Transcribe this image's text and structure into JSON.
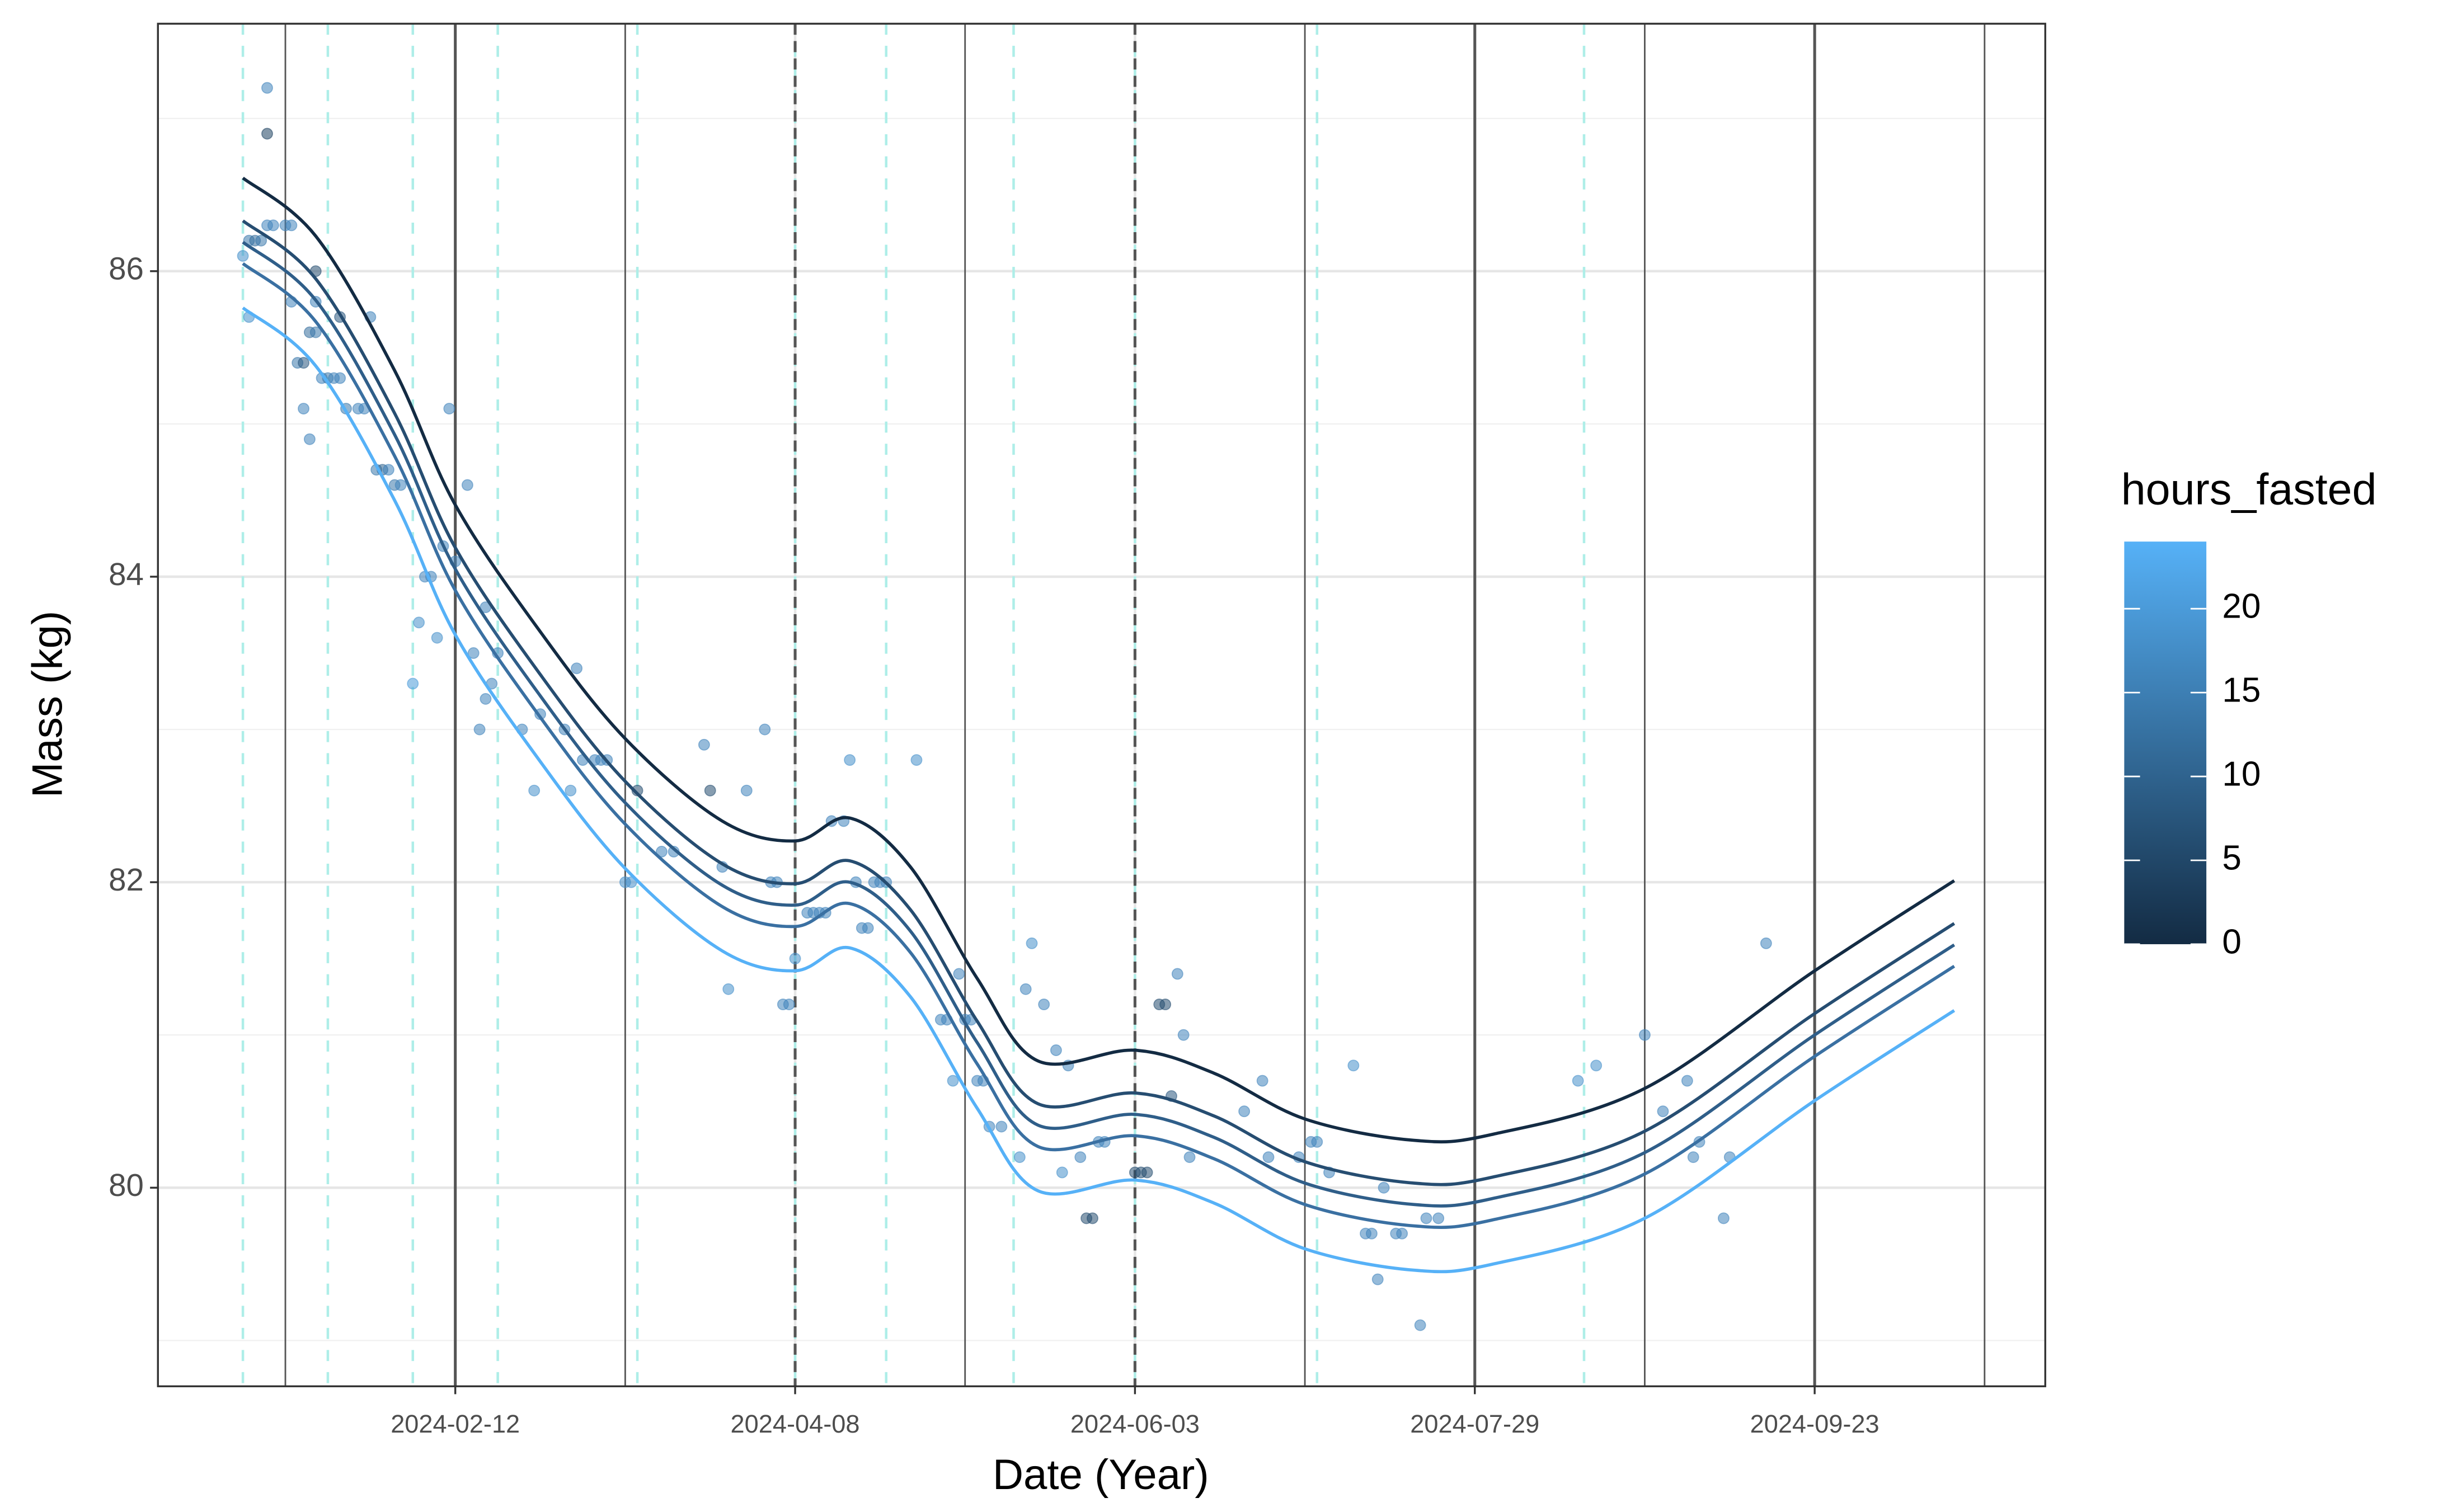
{
  "chart_data": {
    "type": "scatter",
    "x_label": "Date (Year)",
    "y_label": "Mass (kg)",
    "legend_title": "hours_fasted",
    "xlim": [
      "2023-12-25",
      "2024-10-31"
    ],
    "xticks": [
      "2024-02-12",
      "2024-04-08",
      "2024-06-03",
      "2024-07-29",
      "2024-09-23"
    ],
    "ylim": [
      78.7,
      87.62
    ],
    "yticks": [
      80,
      82,
      84,
      86
    ],
    "yminor": [
      79,
      81,
      83,
      85,
      87
    ],
    "grid": true,
    "colorscale": [
      "#132B43",
      "#56B1F7"
    ],
    "colorlim": [
      0,
      24
    ],
    "colorticks": [
      0,
      5,
      10,
      15,
      20
    ],
    "vlines": [
      "2024-01-15",
      "2024-02-12",
      "2024-03-11",
      "2024-04-08",
      "2024-05-06",
      "2024-06-03",
      "2024-07-01",
      "2024-07-29",
      "2024-08-26",
      "2024-09-23",
      "2024-10-21"
    ],
    "vline_color": "#555555",
    "dashed_vlines": [
      "2024-01-08",
      "2024-01-22",
      "2024-02-05",
      "2024-02-19",
      "2024-03-13",
      "2024-04-08",
      "2024-04-23",
      "2024-05-14",
      "2024-06-03",
      "2024-07-03",
      "2024-08-16"
    ],
    "dashed_vline_color": "#aeeee8",
    "points": {
      "x": [
        "2024-01-08",
        "2024-01-09",
        "2024-01-09",
        "2024-01-10",
        "2024-01-11",
        "2024-01-12",
        "2024-01-12",
        "2024-01-12",
        "2024-01-13",
        "2024-01-15",
        "2024-01-16",
        "2024-01-16",
        "2024-01-17",
        "2024-01-18",
        "2024-01-18",
        "2024-01-19",
        "2024-01-19",
        "2024-01-20",
        "2024-01-20",
        "2024-01-20",
        "2024-01-21",
        "2024-01-22",
        "2024-01-23",
        "2024-01-24",
        "2024-01-24",
        "2024-01-25",
        "2024-01-27",
        "2024-01-28",
        "2024-01-29",
        "2024-01-30",
        "2024-01-31",
        "2024-02-01",
        "2024-02-02",
        "2024-02-03",
        "2024-02-05",
        "2024-02-06",
        "2024-02-07",
        "2024-02-08",
        "2024-02-09",
        "2024-02-10",
        "2024-02-11",
        "2024-02-12",
        "2024-02-14",
        "2024-02-15",
        "2024-02-16",
        "2024-02-17",
        "2024-02-17",
        "2024-02-18",
        "2024-02-19",
        "2024-02-23",
        "2024-02-25",
        "2024-02-26",
        "2024-03-01",
        "2024-03-02",
        "2024-03-03",
        "2024-03-04",
        "2024-03-06",
        "2024-03-07",
        "2024-03-08",
        "2024-03-11",
        "2024-03-12",
        "2024-03-13",
        "2024-03-17",
        "2024-03-19",
        "2024-03-24",
        "2024-03-25",
        "2024-03-27",
        "2024-03-28",
        "2024-03-31",
        "2024-04-03",
        "2024-04-04",
        "2024-04-05",
        "2024-04-06",
        "2024-04-07",
        "2024-04-08",
        "2024-04-10",
        "2024-04-11",
        "2024-04-12",
        "2024-04-13",
        "2024-04-14",
        "2024-04-16",
        "2024-04-17",
        "2024-04-18",
        "2024-04-19",
        "2024-04-20",
        "2024-04-21",
        "2024-04-22",
        "2024-04-23",
        "2024-04-28",
        "2024-05-02",
        "2024-05-03",
        "2024-05-04",
        "2024-05-05",
        "2024-05-06",
        "2024-05-07",
        "2024-05-08",
        "2024-05-09",
        "2024-05-10",
        "2024-05-12",
        "2024-05-15",
        "2024-05-16",
        "2024-05-17",
        "2024-05-19",
        "2024-05-21",
        "2024-05-22",
        "2024-05-23",
        "2024-05-25",
        "2024-05-26",
        "2024-05-27",
        "2024-05-28",
        "2024-05-29",
        "2024-06-03",
        "2024-06-04",
        "2024-06-05",
        "2024-06-07",
        "2024-06-08",
        "2024-06-09",
        "2024-06-10",
        "2024-06-11",
        "2024-06-12",
        "2024-06-21",
        "2024-06-24",
        "2024-06-25",
        "2024-06-30",
        "2024-07-02",
        "2024-07-03",
        "2024-07-05",
        "2024-07-09",
        "2024-07-11",
        "2024-07-12",
        "2024-07-13",
        "2024-07-14",
        "2024-07-16",
        "2024-07-17",
        "2024-07-20",
        "2024-07-21",
        "2024-07-23",
        "2024-08-15",
        "2024-08-18",
        "2024-08-26",
        "2024-08-29",
        "2024-09-02",
        "2024-09-03",
        "2024-09-04",
        "2024-09-08",
        "2024-09-09",
        "2024-09-15"
      ],
      "y": [
        86.1,
        85.7,
        86.2,
        86.2,
        86.2,
        87.2,
        86.9,
        86.3,
        86.3,
        86.3,
        86.3,
        85.8,
        85.4,
        85.4,
        85.1,
        85.6,
        84.9,
        85.6,
        85.8,
        86.0,
        85.3,
        85.3,
        85.3,
        85.7,
        85.3,
        85.1,
        85.1,
        85.1,
        85.7,
        84.7,
        84.7,
        84.7,
        84.6,
        84.6,
        83.3,
        83.7,
        84.0,
        84.0,
        83.6,
        84.2,
        85.1,
        84.1,
        84.6,
        83.5,
        83.0,
        83.8,
        83.2,
        83.3,
        83.5,
        83.0,
        82.6,
        83.1,
        83.0,
        82.6,
        83.4,
        82.8,
        82.8,
        82.8,
        82.8,
        82.0,
        82.0,
        82.6,
        82.2,
        82.2,
        82.9,
        82.6,
        82.1,
        81.3,
        82.6,
        83.0,
        82.0,
        82.0,
        81.2,
        81.2,
        81.5,
        81.8,
        81.8,
        81.8,
        81.8,
        82.4,
        82.4,
        82.8,
        82.0,
        81.7,
        81.7,
        82.0,
        82.0,
        82.0,
        82.8,
        81.1,
        81.1,
        80.7,
        81.4,
        81.1,
        81.1,
        80.7,
        80.7,
        80.4,
        80.4,
        80.2,
        81.3,
        81.6,
        81.2,
        80.9,
        80.1,
        80.8,
        80.2,
        79.8,
        79.8,
        80.3,
        80.3,
        80.1,
        80.1,
        80.1,
        81.2,
        81.2,
        80.6,
        81.4,
        81.0,
        80.2,
        80.5,
        80.7,
        80.2,
        80.2,
        80.3,
        80.3,
        80.1,
        80.8,
        79.7,
        79.7,
        79.4,
        80.0,
        79.7,
        79.7,
        79.1,
        79.8,
        79.8,
        80.7,
        80.8,
        81.0,
        80.5,
        80.7,
        80.2,
        80.3,
        79.8,
        80.2,
        81.6
      ],
      "hours": [
        18,
        18,
        14,
        12,
        14,
        16,
        4,
        16,
        16,
        16,
        16,
        16,
        14,
        8,
        16,
        12,
        16,
        14,
        16,
        6,
        16,
        14,
        16,
        8,
        16,
        14,
        16,
        16,
        16,
        14,
        10,
        16,
        14,
        16,
        20,
        18,
        16,
        16,
        18,
        16,
        16,
        16,
        16,
        16,
        16,
        16,
        16,
        16,
        16,
        16,
        18,
        16,
        16,
        18,
        16,
        16,
        16,
        16,
        16,
        18,
        18,
        6,
        16,
        16,
        16,
        6,
        16,
        18,
        16,
        16,
        16,
        16,
        16,
        16,
        18,
        16,
        16,
        16,
        16,
        16,
        16,
        18,
        16,
        16,
        16,
        16,
        16,
        16,
        18,
        16,
        16,
        18,
        16,
        16,
        16,
        16,
        16,
        16,
        16,
        18,
        16,
        18,
        16,
        16,
        18,
        16,
        16,
        6,
        6,
        16,
        16,
        6,
        6,
        6,
        6,
        6,
        8,
        16,
        16,
        16,
        16,
        16,
        16,
        16,
        16,
        16,
        16,
        18,
        16,
        16,
        16,
        16,
        16,
        16,
        16,
        16,
        16,
        18,
        18,
        16,
        16,
        16,
        16,
        16,
        16,
        16,
        16
      ],
      "opacity": 0.55
    },
    "lines_x": [
      "2024-01-08",
      "2024-01-20",
      "2024-02-02",
      "2024-02-12",
      "2024-02-26",
      "2024-03-11",
      "2024-03-27",
      "2024-04-08",
      "2024-04-17",
      "2024-04-27",
      "2024-05-08",
      "2024-05-18",
      "2024-06-03",
      "2024-06-16",
      "2024-07-01",
      "2024-07-19",
      "2024-08-01",
      "2024-08-26",
      "2024-09-23",
      "2024-10-16"
    ],
    "series": [
      {
        "color": "#132B43",
        "values": [
          86.61,
          86.23,
          85.35,
          84.47,
          83.64,
          82.94,
          82.4,
          82.27,
          82.42,
          82.1,
          81.37,
          80.83,
          80.9,
          80.75,
          80.45,
          80.31,
          80.35,
          80.65,
          81.42,
          82.01
        ]
      },
      {
        "color": "#264D71",
        "values": [
          86.33,
          85.95,
          85.07,
          84.19,
          83.36,
          82.66,
          82.12,
          81.99,
          82.14,
          81.82,
          81.09,
          80.55,
          80.62,
          80.47,
          80.17,
          80.03,
          80.07,
          80.37,
          81.14,
          81.73
        ]
      },
      {
        "color": "#2F5E89",
        "values": [
          86.19,
          85.81,
          84.93,
          84.05,
          83.22,
          82.52,
          81.98,
          81.85,
          82.0,
          81.68,
          80.95,
          80.41,
          80.48,
          80.33,
          80.03,
          79.89,
          79.93,
          80.23,
          81.0,
          81.59
        ]
      },
      {
        "color": "#3A70A2",
        "values": [
          86.05,
          85.67,
          84.79,
          83.91,
          83.08,
          82.38,
          81.84,
          81.71,
          81.86,
          81.54,
          80.81,
          80.27,
          80.34,
          80.19,
          79.89,
          79.75,
          79.79,
          80.09,
          80.86,
          81.45
        ]
      },
      {
        "color": "#56B1F7",
        "values": [
          85.76,
          85.38,
          84.5,
          83.62,
          82.79,
          82.09,
          81.55,
          81.42,
          81.57,
          81.25,
          80.52,
          79.98,
          80.05,
          79.9,
          79.6,
          79.46,
          79.5,
          79.8,
          80.57,
          81.16
        ]
      }
    ]
  }
}
